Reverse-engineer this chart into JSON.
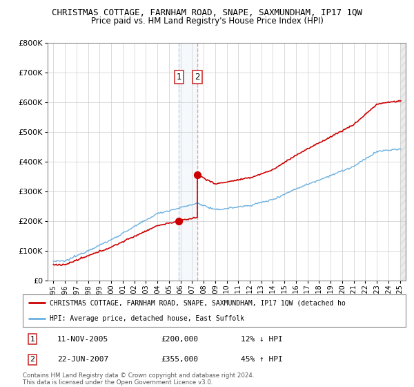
{
  "title": "CHRISTMAS COTTAGE, FARNHAM ROAD, SNAPE, SAXMUNDHAM, IP17 1QW",
  "subtitle": "Price paid vs. HM Land Registry's House Price Index (HPI)",
  "legend_line1": "CHRISTMAS COTTAGE, FARNHAM ROAD, SNAPE, SAXMUNDHAM, IP17 1QW (detached ho",
  "legend_line2": "HPI: Average price, detached house, East Suffolk",
  "footnote": "Contains HM Land Registry data © Crown copyright and database right 2024.\nThis data is licensed under the Open Government Licence v3.0.",
  "sale1_date": "11-NOV-2005",
  "sale1_price": "£200,000",
  "sale1_hpi": "12% ↓ HPI",
  "sale2_date": "22-JUN-2007",
  "sale2_price": "£355,000",
  "sale2_hpi": "45% ↑ HPI",
  "sale1_year": 2005.87,
  "sale2_year": 2007.47,
  "sale1_value": 200000,
  "sale2_value": 355000,
  "red_color": "#cc0000",
  "blue_color": "#6ab0e0",
  "ylim_min": 0,
  "ylim_max": 800000,
  "xlim_min": 1994.5,
  "xlim_max": 2025.5
}
